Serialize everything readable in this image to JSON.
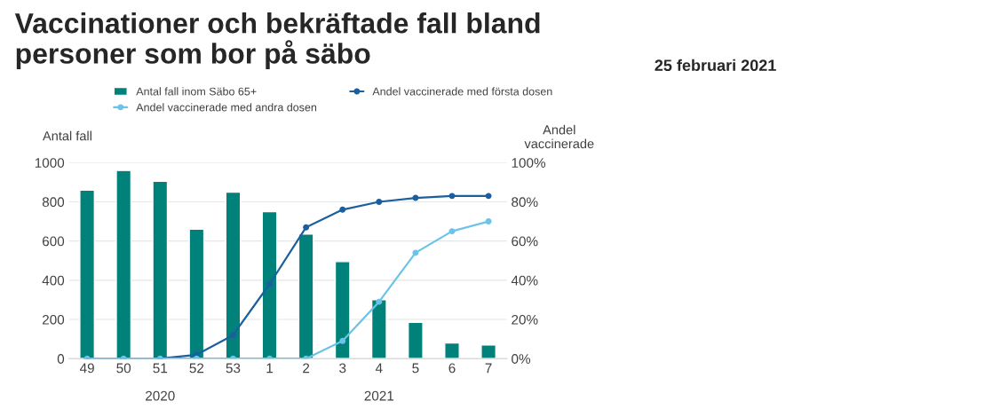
{
  "chart_data": {
    "type": "bar",
    "title": "Vaccinationer och bekräftade fall bland\npersoner som bor på säbo",
    "annotations": [
      "25 februari 2021",
      "2020",
      "2021"
    ],
    "categories": [
      "49",
      "50",
      "51",
      "52",
      "53",
      "1",
      "2",
      "3",
      "4",
      "5",
      "6",
      "7"
    ],
    "series": [
      {
        "name": "Antal fall inom Säbo 65+",
        "color": "#00827a",
        "values": [
          860,
          960,
          905,
          660,
          850,
          750,
          635,
          495,
          300,
          185,
          80,
          70
        ]
      },
      {
        "name": "Andel vaccinerade med första dosen",
        "type": "line",
        "axis": "y2",
        "color": "#1a5f9e",
        "values": [
          0,
          0,
          0,
          2,
          12,
          38,
          67,
          76,
          80,
          82,
          83,
          83
        ]
      },
      {
        "name": "Andel vaccinerade med andra dosen",
        "type": "line",
        "axis": "y2",
        "color": "#6cc3e8",
        "values": [
          0,
          0,
          0,
          0,
          0,
          0,
          0,
          9,
          29,
          54,
          65,
          70
        ]
      }
    ],
    "ylabel": "Antal fall",
    "y2label": "Andel\nvaccinerade",
    "ylim": [
      0,
      1000
    ],
    "yticks": [
      0,
      200,
      400,
      600,
      800,
      1000
    ],
    "y2lim": [
      0,
      100
    ],
    "y2ticks": [
      {
        "value": 0,
        "label": "0%"
      },
      {
        "value": 20,
        "label": "20%"
      },
      {
        "value": 40,
        "label": "40%"
      },
      {
        "value": 60,
        "label": "60%"
      },
      {
        "value": 80,
        "label": "80%"
      },
      {
        "value": 100,
        "label": "100%"
      }
    ],
    "grid": "y",
    "legend": "top",
    "marker": "circle",
    "line_style": "solid"
  }
}
